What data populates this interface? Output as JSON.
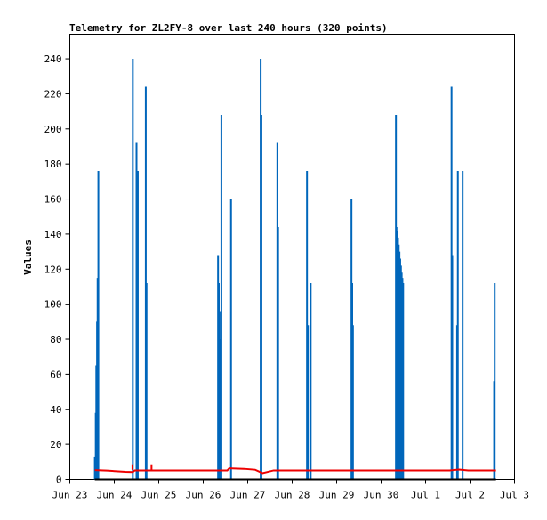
{
  "chart_data": {
    "type": "line",
    "title": "Telemetry for ZL2FY-8 over last 240 hours (320 points)",
    "xlabel": "",
    "ylabel": "Values",
    "ylim": [
      0,
      254
    ],
    "yticks": [
      0,
      20,
      40,
      60,
      80,
      100,
      120,
      140,
      160,
      180,
      200,
      220,
      240
    ],
    "xlim": [
      0,
      240
    ],
    "xticks": [
      {
        "label": "Jun 23",
        "x": 0
      },
      {
        "label": "Jun 24",
        "x": 24
      },
      {
        "label": "Jun 25",
        "x": 48
      },
      {
        "label": "Jun 26",
        "x": 72
      },
      {
        "label": "Jun 27",
        "x": 96
      },
      {
        "label": "Jun 28",
        "x": 120
      },
      {
        "label": "Jun 29",
        "x": 144
      },
      {
        "label": "Jun 30",
        "x": 168
      },
      {
        "label": "Jul 1",
        "x": 192
      },
      {
        "label": "Jul 2",
        "x": 216
      },
      {
        "label": "Jul 3",
        "x": 240
      }
    ],
    "grid": false,
    "colors": {
      "blue": "#0066bb",
      "red": "#ee0000"
    },
    "series": [
      {
        "color": "#0066bb",
        "spikes": [
          {
            "x": 13.5,
            "y": 13
          },
          {
            "x": 14.0,
            "y": 38
          },
          {
            "x": 14.3,
            "y": 65
          },
          {
            "x": 14.7,
            "y": 90
          },
          {
            "x": 15.0,
            "y": 115
          },
          {
            "x": 15.4,
            "y": 176
          },
          {
            "x": 34.0,
            "y": 240
          },
          {
            "x": 36.0,
            "y": 192
          },
          {
            "x": 36.7,
            "y": 176
          },
          {
            "x": 41.0,
            "y": 224
          },
          {
            "x": 41.4,
            "y": 112
          },
          {
            "x": 80.0,
            "y": 128
          },
          {
            "x": 80.4,
            "y": 112
          },
          {
            "x": 80.8,
            "y": 48
          },
          {
            "x": 81.1,
            "y": 80
          },
          {
            "x": 81.4,
            "y": 96
          },
          {
            "x": 81.8,
            "y": 208
          },
          {
            "x": 87.0,
            "y": 160
          },
          {
            "x": 103.0,
            "y": 240
          },
          {
            "x": 103.4,
            "y": 208
          },
          {
            "x": 112.0,
            "y": 192
          },
          {
            "x": 112.4,
            "y": 144
          },
          {
            "x": 128.0,
            "y": 176
          },
          {
            "x": 128.5,
            "y": 88
          },
          {
            "x": 130.0,
            "y": 112
          },
          {
            "x": 152.0,
            "y": 160
          },
          {
            "x": 152.4,
            "y": 112
          },
          {
            "x": 152.8,
            "y": 88
          },
          {
            "x": 176.0,
            "y": 208
          },
          {
            "x": 176.3,
            "y": 144
          },
          {
            "x": 176.7,
            "y": 142
          },
          {
            "x": 177.1,
            "y": 138
          },
          {
            "x": 177.5,
            "y": 134
          },
          {
            "x": 177.9,
            "y": 130
          },
          {
            "x": 178.3,
            "y": 126
          },
          {
            "x": 178.7,
            "y": 122
          },
          {
            "x": 179.1,
            "y": 118
          },
          {
            "x": 179.5,
            "y": 115
          },
          {
            "x": 179.9,
            "y": 112
          },
          {
            "x": 206.0,
            "y": 224
          },
          {
            "x": 206.4,
            "y": 128
          },
          {
            "x": 209.0,
            "y": 88
          },
          {
            "x": 209.4,
            "y": 176
          },
          {
            "x": 212.0,
            "y": 176
          },
          {
            "x": 229.0,
            "y": 56
          },
          {
            "x": 229.3,
            "y": 112
          }
        ]
      },
      {
        "color": "#ee0000",
        "points": [
          [
            13.5,
            5.3
          ],
          [
            20,
            5
          ],
          [
            30,
            4.3
          ],
          [
            34,
            4.2
          ],
          [
            35,
            5.1
          ],
          [
            45,
            5.1
          ],
          [
            60,
            5.1
          ],
          [
            85,
            5.1
          ],
          [
            86,
            6.3
          ],
          [
            94,
            6
          ],
          [
            100,
            5.5
          ],
          [
            104,
            3.6
          ],
          [
            110,
            5.1
          ],
          [
            130,
            5.1
          ],
          [
            150,
            5.1
          ],
          [
            170,
            5.1
          ],
          [
            190,
            5.1
          ],
          [
            205,
            5.1
          ],
          [
            210,
            5.6
          ],
          [
            215,
            5.1
          ],
          [
            230,
            5.1
          ]
        ],
        "marks": [
          [
            33.8,
            7
          ],
          [
            44.1,
            7
          ]
        ]
      },
      {
        "color": "#000000",
        "points": [
          [
            13.5,
            0
          ],
          [
            230,
            0
          ]
        ]
      }
    ]
  }
}
